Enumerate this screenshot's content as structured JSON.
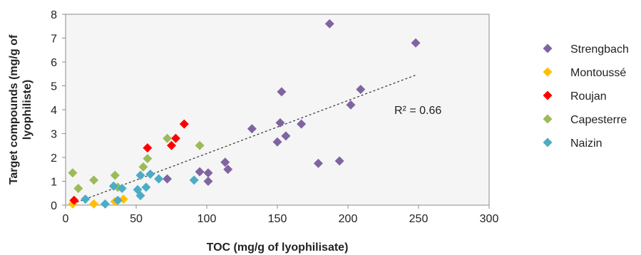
{
  "chart_data": {
    "type": "scatter",
    "title": "",
    "xlabel": "TOC (mg/g of lyophilisate)",
    "ylabel_lines": [
      "Target compounds (mg/g of",
      "lyophiliste)"
    ],
    "xlim": [
      0,
      300
    ],
    "ylim": [
      0,
      8
    ],
    "xticks": [
      0,
      50,
      100,
      150,
      200,
      250,
      300
    ],
    "yticks": [
      0,
      1,
      2,
      3,
      4,
      5,
      6,
      7,
      8
    ],
    "grid": false,
    "legend_position": "right",
    "annotation": "R² = 0.66",
    "trendline": {
      "style": "dashed",
      "color": "#333333",
      "points": [
        [
          8,
          0.12
        ],
        [
          248,
          5.45
        ]
      ]
    },
    "series": [
      {
        "name": "Strengbach",
        "color": "#8064a2",
        "points": [
          [
            72,
            1.1
          ],
          [
            95,
            1.4
          ],
          [
            101,
            1.35
          ],
          [
            101,
            1.0
          ],
          [
            113,
            1.8
          ],
          [
            115,
            1.5
          ],
          [
            132,
            3.2
          ],
          [
            150,
            2.65
          ],
          [
            152,
            3.45
          ],
          [
            153,
            4.75
          ],
          [
            156,
            2.9
          ],
          [
            167,
            3.4
          ],
          [
            179,
            1.75
          ],
          [
            187,
            7.6
          ],
          [
            194,
            1.85
          ],
          [
            202,
            4.2
          ],
          [
            209,
            4.85
          ],
          [
            248,
            6.8
          ]
        ]
      },
      {
        "name": "Montoussé",
        "color": "#ffc000",
        "points": [
          [
            5,
            0.05
          ],
          [
            20,
            0.05
          ],
          [
            35,
            0.15
          ],
          [
            41,
            0.25
          ]
        ]
      },
      {
        "name": "Roujan",
        "color": "#ff0000",
        "points": [
          [
            6,
            0.2
          ],
          [
            58,
            2.4
          ],
          [
            75,
            2.5
          ],
          [
            78,
            2.8
          ],
          [
            84,
            3.4
          ]
        ]
      },
      {
        "name": "Capesterre",
        "color": "#9bbb59",
        "points": [
          [
            5,
            1.35
          ],
          [
            9,
            0.7
          ],
          [
            20,
            1.05
          ],
          [
            35,
            1.25
          ],
          [
            37,
            0.75
          ],
          [
            55,
            1.6
          ],
          [
            58,
            1.95
          ],
          [
            72,
            2.8
          ],
          [
            95,
            2.5
          ]
        ]
      },
      {
        "name": "Naizin",
        "color": "#4bacc6",
        "points": [
          [
            14,
            0.25
          ],
          [
            28,
            0.05
          ],
          [
            34,
            0.8
          ],
          [
            37,
            0.2
          ],
          [
            40,
            0.7
          ],
          [
            51,
            0.65
          ],
          [
            53,
            0.4
          ],
          [
            53,
            1.25
          ],
          [
            57,
            0.75
          ],
          [
            60,
            1.3
          ],
          [
            66,
            1.1
          ],
          [
            91,
            1.05
          ]
        ]
      }
    ]
  }
}
